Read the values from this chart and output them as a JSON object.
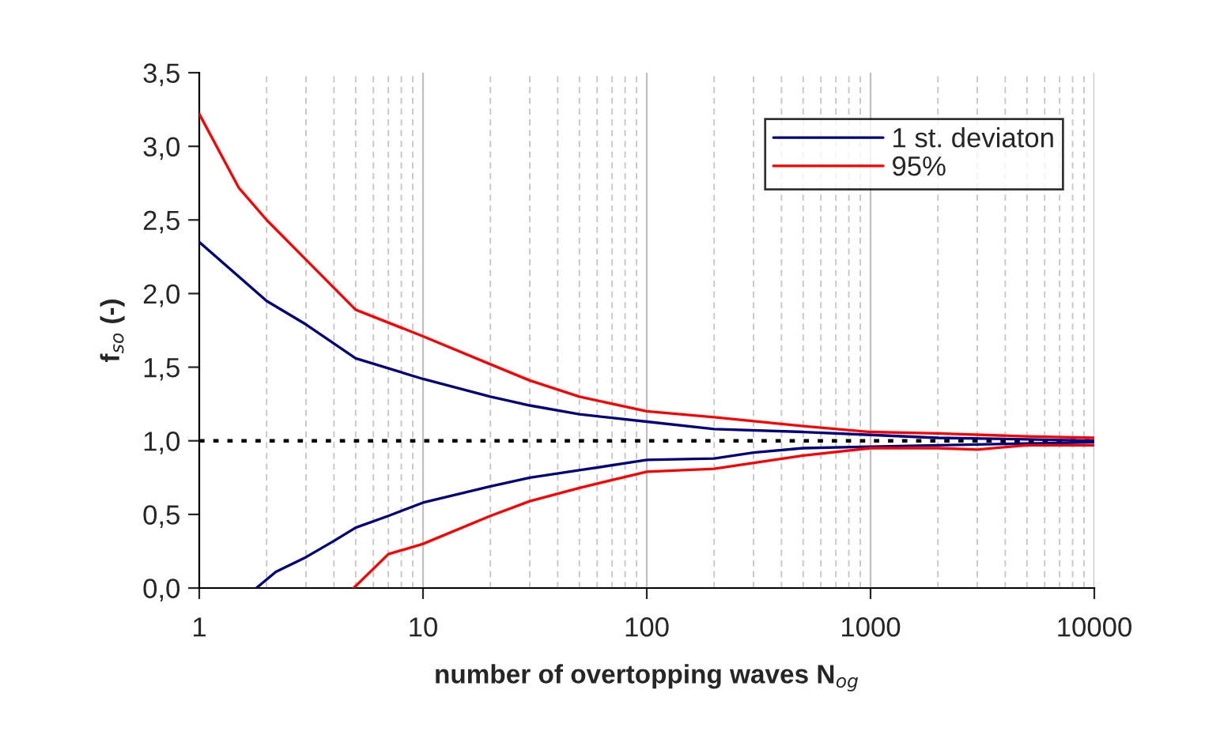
{
  "chart_data": {
    "type": "line",
    "xlabel": "number of overtopping waves N$_{og}$",
    "ylabel": "f$_{so}$ (-)",
    "log": "x",
    "xlim": [
      1,
      10000
    ],
    "xticks": [
      1,
      10,
      100,
      1000,
      10000
    ],
    "ylim": [
      0,
      3.5
    ],
    "yticks": [
      {
        "value": 0,
        "label": "0,0"
      },
      {
        "value": 0.5,
        "label": "0,5"
      },
      {
        "value": 1,
        "label": "1,0"
      },
      {
        "value": 1.5,
        "label": "1,5"
      },
      {
        "value": 2,
        "label": "2,0"
      },
      {
        "value": 2.5,
        "label": "2,5"
      },
      {
        "value": 3,
        "label": "3,0"
      },
      {
        "value": 3.5,
        "label": "3,5"
      }
    ],
    "grid": "x",
    "legend": "top right",
    "line_style": "solid",
    "marker": "none",
    "ref_lines": [
      {
        "axis": "y",
        "value": 1,
        "color": "#000000",
        "line_style": "dotted"
      }
    ],
    "series": [
      {
        "name": "1 st. deviaton",
        "color": "#000080",
        "x": [
          1,
          2,
          3,
          5,
          10,
          20,
          30,
          50,
          100,
          200,
          500,
          1000,
          2000,
          5000,
          10000
        ],
        "values": [
          2.35,
          1.95,
          1.79,
          1.56,
          1.42,
          1.3,
          1.24,
          1.18,
          1.13,
          1.08,
          1.06,
          1.04,
          1.02,
          1.01,
          1.0
        ]
      },
      {
        "name": "95%",
        "color": "#ff0000",
        "x": [
          1,
          1.5,
          2,
          3,
          5,
          10,
          20,
          30,
          50,
          100,
          200,
          500,
          1000,
          2000,
          5000,
          10000
        ],
        "values": [
          3.22,
          2.72,
          2.5,
          2.23,
          1.89,
          1.71,
          1.52,
          1.41,
          1.3,
          1.2,
          1.16,
          1.1,
          1.06,
          1.05,
          1.03,
          1.02
        ]
      },
      {
        "color": "#000080",
        "x": [
          1.8,
          2.2,
          3,
          4,
          5,
          7,
          10,
          20,
          30,
          50,
          100,
          200,
          300,
          500,
          1000,
          2000,
          10000
        ],
        "values": [
          0,
          0.11,
          0.21,
          0.32,
          0.41,
          0.49,
          0.58,
          0.69,
          0.75,
          0.8,
          0.87,
          0.88,
          0.92,
          0.95,
          0.96,
          0.97,
          0.99
        ]
      },
      {
        "color": "#ff0000",
        "x": [
          4.9,
          7,
          10,
          20,
          30,
          50,
          100,
          200,
          500,
          1000,
          2000,
          3000,
          5000,
          10000
        ],
        "values": [
          0,
          0.23,
          0.3,
          0.49,
          0.59,
          0.68,
          0.79,
          0.81,
          0.9,
          0.95,
          0.95,
          0.94,
          0.97,
          0.97
        ]
      }
    ]
  }
}
